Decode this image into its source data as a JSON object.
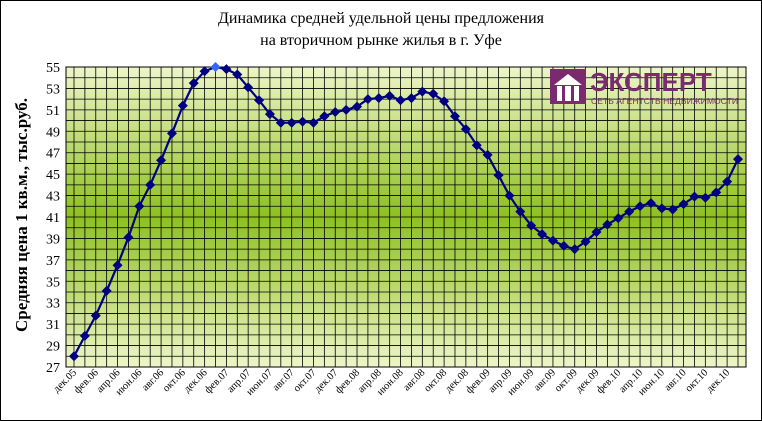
{
  "chart_data": {
    "type": "line",
    "title_lines": [
      "Динамика средней удельной цены предложения",
      "на вторичном рынке жилья в г. Уфе"
    ],
    "ylabel": "Средняя цена 1 кв.м., тыс.руб.",
    "xlabel": "",
    "ylim": [
      27,
      55
    ],
    "yticks": [
      27,
      29,
      31,
      33,
      35,
      37,
      39,
      41,
      43,
      45,
      47,
      49,
      51,
      53,
      55
    ],
    "grid": true,
    "x_tick_labels": [
      "дек.05",
      "фев.06",
      "апр.06",
      "июн.06",
      "авг.06",
      "окт.06",
      "дек.06",
      "фев.07",
      "апр.07",
      "июн.07",
      "авг.07",
      "окт.07",
      "дек.07",
      "фев.08",
      "апр.08",
      "июн.08",
      "авг.08",
      "окт.08",
      "дек.08",
      "фев.09",
      "апр.09",
      "июн.09",
      "авг.09",
      "окт.09",
      "дек.09",
      "фев.10",
      "апр.10",
      "июн.10",
      "авг.10",
      "окт.10",
      "дек.10"
    ],
    "series": [
      {
        "values": [
          28.0,
          29.9,
          31.8,
          34.1,
          36.5,
          39.1,
          42.0,
          44.0,
          46.3,
          48.8,
          51.4,
          53.5,
          54.6,
          55.0,
          54.8,
          54.3,
          53.1,
          51.9,
          50.6,
          49.8,
          49.8,
          49.9,
          49.8,
          50.4,
          50.8,
          51.0,
          51.3,
          52.0,
          52.1,
          52.3,
          51.9,
          52.1,
          52.7,
          52.5,
          51.8,
          50.4,
          49.2,
          47.7,
          46.8,
          44.9,
          43.0,
          41.5,
          40.2,
          39.4,
          38.8,
          38.3,
          38.0,
          38.7,
          39.6,
          40.3,
          40.9,
          41.5,
          42.0,
          42.3,
          41.8,
          41.7,
          42.2,
          42.9,
          42.8,
          43.3,
          44.3,
          46.4
        ],
        "color": "#000080",
        "highlight_color": "#3366ff",
        "highlight_index": 13
      }
    ]
  },
  "logo": {
    "name": "ЭКСПЕРТ",
    "tagline": "СЕТЬ АГЕНТСТВ НЕДВИЖИМОСТИ",
    "color": "#7a2a6e"
  },
  "colors": {
    "plot_background_center": "#8dc020",
    "plot_background_edge": "#eef5c8",
    "grid": "#000000"
  }
}
